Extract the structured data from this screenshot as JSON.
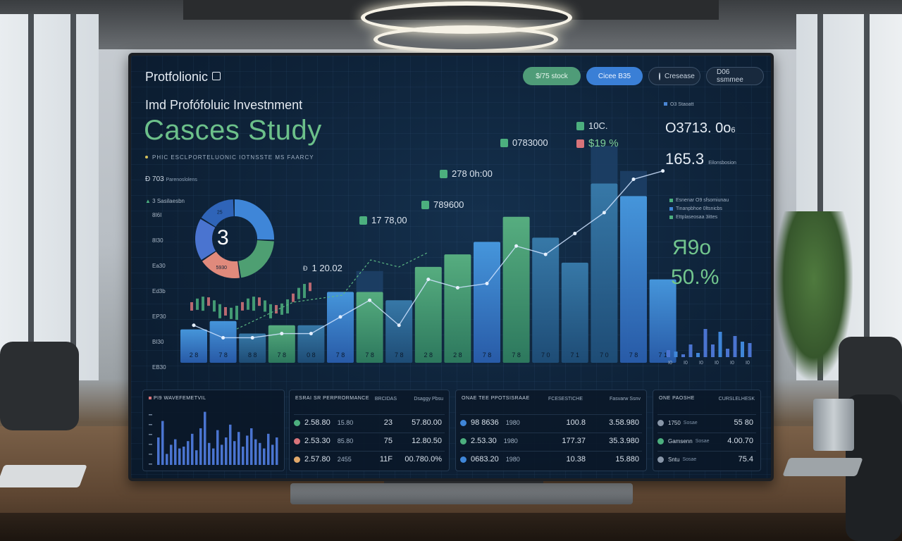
{
  "brand": {
    "name": "Protfolionic"
  },
  "nav": [
    {
      "label": "$/75 stock",
      "style": "green"
    },
    {
      "label": "Cicee B35",
      "style": "blue"
    },
    {
      "label": "Cresease",
      "style": "dark"
    },
    {
      "label": "D06 ssmmee",
      "style": "dark2"
    }
  ],
  "header": {
    "subtitle": "Imd Profófoluic Investnment",
    "title": "Casces Study",
    "tagline": "PHIC ESCLPORTELUONIC IOTNSSTE MS FAARCY"
  },
  "left_labels": {
    "top": "703",
    "top_prefix": "Ð",
    "top_small": "Parenoslolens",
    "second": "3 Sasilaesbn",
    "axis": [
      "8I6I",
      "8I30",
      "Ea30",
      "Ed3b",
      "EP30",
      "BI30",
      "EB30"
    ]
  },
  "donut": {
    "center": "3",
    "segments": [
      {
        "label": "",
        "value": 26,
        "color": "#3f86d8"
      },
      {
        "label": "",
        "value": 22,
        "color": "#4e9f72"
      },
      {
        "label": "5930",
        "value": 18,
        "color": "#e08a7c"
      },
      {
        "label": "",
        "value": 18,
        "color": "#4a74d0"
      },
      {
        "label": "25",
        "value": 16,
        "color": "#2f64b8"
      }
    ]
  },
  "price_tags": [
    {
      "text": "0783000",
      "style": "green"
    },
    {
      "text": "10C.",
      "style": "green"
    },
    {
      "text": "$19 %",
      "style": "red"
    },
    {
      "text": "278 0h:00",
      "style": "green"
    },
    {
      "text": "789600",
      "style": "green"
    },
    {
      "text": "17 78,00",
      "style": "green"
    },
    {
      "text": "1 20.02",
      "style": "none"
    }
  ],
  "chart_data": {
    "type": "bar",
    "categories": [
      "2 8",
      "7 8",
      "8 8",
      "7 8",
      "0 8",
      "7 8",
      "7 8",
      "7 8",
      "2 8",
      "2 8",
      "7 8",
      "7 8",
      "7 0",
      "7 1",
      "7 0",
      "7 8",
      "7 1"
    ],
    "series": [
      {
        "values": [
          16,
          20,
          14,
          18,
          18,
          34,
          34,
          30,
          46,
          52,
          58,
          70,
          60,
          48,
          86,
          80,
          40
        ]
      },
      {
        "values": [
          0,
          0,
          0,
          0,
          0,
          0,
          10,
          0,
          0,
          0,
          0,
          0,
          0,
          0,
          18,
          12,
          0
        ]
      }
    ],
    "line": [
      18,
      12,
      12,
      14,
      14,
      22,
      30,
      18,
      40,
      36,
      38,
      56,
      52,
      62,
      72,
      88,
      92
    ],
    "ylim": [
      0,
      100
    ]
  },
  "kpis": {
    "top_label": "O3 Staoatt",
    "value1": "O3713. 0o",
    "value1_suffix": "6",
    "value2": "165.3",
    "value2_suffix": "Eilonsbosion",
    "legend": [
      "Esnenar O9 sfsomiunau",
      "Tinanpbhoe 0ltsnicbs",
      "Ettplaseosaa 3ittes"
    ],
    "big1": "Я9o",
    "big2": "50.%",
    "mini_bars": [
      10,
      8,
      4,
      18,
      6,
      40,
      18,
      36,
      12,
      30,
      22,
      20
    ],
    "mini_labels": [
      "I0",
      "I0",
      "I0",
      "I0",
      "I0",
      "I0"
    ]
  },
  "panel1": {
    "title": "PI9 WAVEFEMETVIL",
    "bars": [
      30,
      48,
      12,
      22,
      28,
      18,
      20,
      26,
      34,
      16,
      40,
      58,
      24,
      18,
      38,
      22,
      30,
      44,
      26,
      36,
      20,
      32,
      40,
      28,
      24,
      18,
      34,
      22,
      30
    ]
  },
  "panel2": {
    "title": "ESRAI SR PERPRORMANCE",
    "cols": [
      "BRCIDAS",
      "Dsaggy Pbsu"
    ],
    "rows": [
      {
        "a": "2.58.80",
        "b": "15.80",
        "c": "23",
        "d": "57.80.00",
        "color": "#4caf7e"
      },
      {
        "a": "2.53.30",
        "b": "85.80",
        "c": "75",
        "d": "12.80.50",
        "color": "#d9747a"
      },
      {
        "a": "2.57.80",
        "b": "2455",
        "c": "11F",
        "d": "00.780.0%",
        "color": "#e0a86a"
      }
    ]
  },
  "panel3": {
    "title": "ONAE TEE PPOTSISRAAE",
    "cols": [
      "FCESESTICHE",
      "Fasvarw Ssnv"
    ],
    "rows": [
      {
        "a": "98 8636",
        "b": "1980",
        "c": "100.8",
        "d": "3.58.980",
        "color": "#3f86d8"
      },
      {
        "a": "2.53.30",
        "b": "1980",
        "c": "177.37",
        "d": "35.3.980",
        "color": "#4caf7e"
      },
      {
        "a": "0683.20",
        "b": "1980",
        "c": "10.38",
        "d": "15.880",
        "color": "#3f86d8"
      }
    ]
  },
  "panel4": {
    "title": "ONE PAOSHE",
    "cols": [
      "CURSLELHESK"
    ],
    "rows": [
      {
        "a": "1750",
        "sub": "Sosae",
        "d": "55 80",
        "color": "#8896a8"
      },
      {
        "a": "Gamsenn",
        "sub": "Sosae",
        "d": "4.00.70",
        "color": "#4caf7e"
      },
      {
        "a": "Sntu",
        "sub": "Sosae",
        "d": "75.4",
        "color": "#8896a8"
      }
    ]
  }
}
